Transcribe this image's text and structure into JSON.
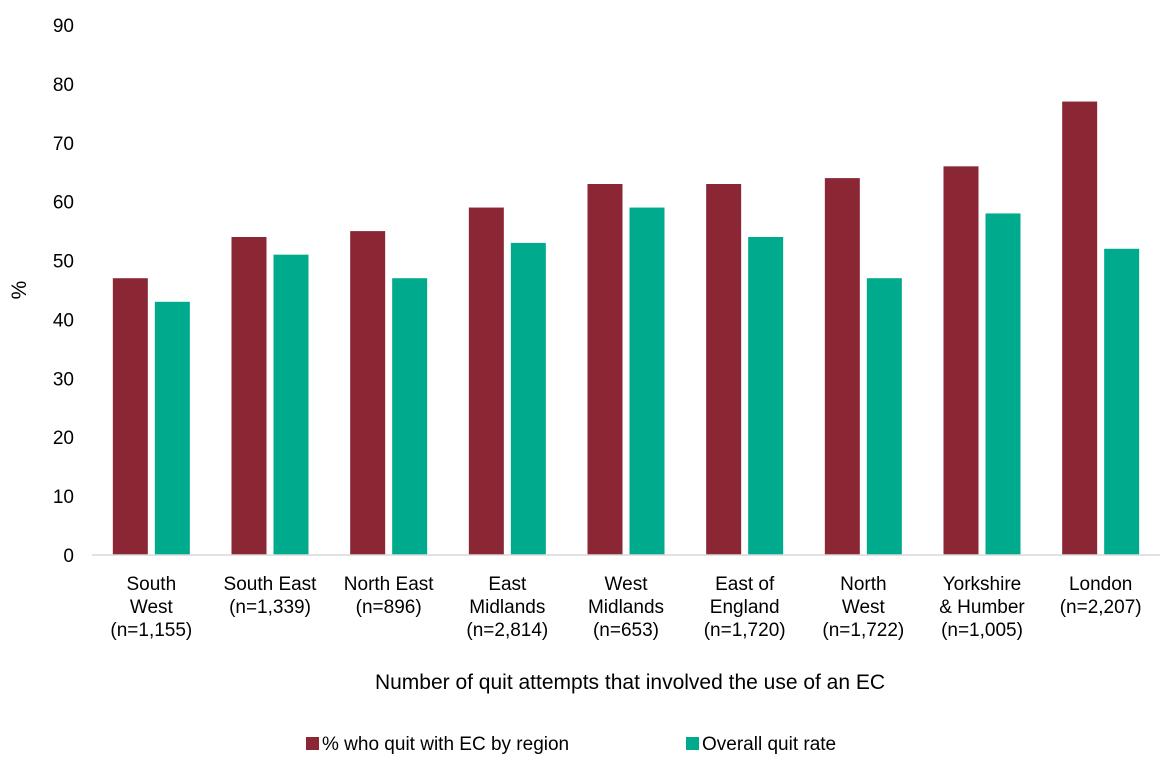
{
  "chart_data": {
    "type": "bar",
    "title": "",
    "xlabel": "Number of quit attempts that involved the use of an EC",
    "ylabel": "%",
    "ylim": [
      0,
      90
    ],
    "yticks": [
      "0",
      "10",
      "20",
      "30",
      "40",
      "50",
      "60",
      "70",
      "80",
      "90"
    ],
    "grid": false,
    "legend_position": "bottom",
    "categories": [
      [
        "South",
        "West",
        "(n=1,155)"
      ],
      [
        "South East",
        "(n=1,339)"
      ],
      [
        "North East",
        "(n=896)"
      ],
      [
        "East",
        "Midlands",
        "(n=2,814)"
      ],
      [
        "West",
        "Midlands",
        "(n=653)"
      ],
      [
        "East of",
        "England",
        "(n=1,720)"
      ],
      [
        "North",
        "West",
        "(n=1,722)"
      ],
      [
        "Yorkshire",
        "& Humber",
        "(n=1,005)"
      ],
      [
        "London",
        "(n=2,207)"
      ]
    ],
    "series": [
      {
        "name": "% who quit with EC by region",
        "color": "#8B2635",
        "values": [
          47,
          54,
          55,
          59,
          63,
          63,
          64,
          66,
          77
        ]
      },
      {
        "name": "Overall quit rate",
        "color": "#00AA8D",
        "values": [
          43,
          51,
          47,
          53,
          59,
          54,
          47,
          58,
          52
        ]
      }
    ]
  }
}
